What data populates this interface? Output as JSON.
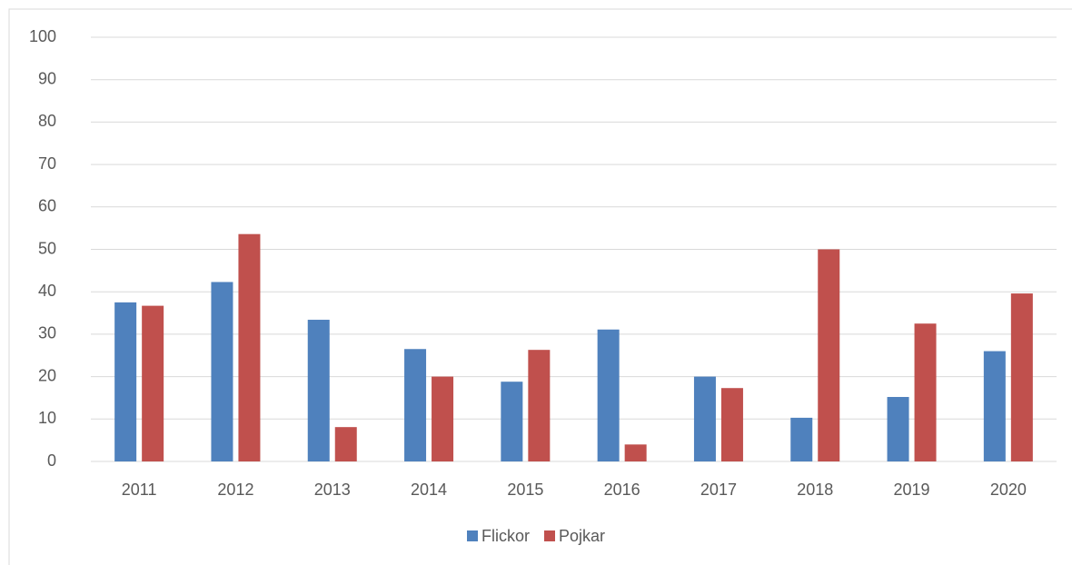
{
  "chart_data": {
    "type": "bar",
    "categories": [
      "2011",
      "2012",
      "2013",
      "2014",
      "2015",
      "2016",
      "2017",
      "2018",
      "2019",
      "2020"
    ],
    "series": [
      {
        "name": "Flickor",
        "color": "#4f81bd",
        "values": [
          37.5,
          42.3,
          33.4,
          26.5,
          18.8,
          31.1,
          20.0,
          10.3,
          15.2,
          26.0
        ]
      },
      {
        "name": "Pojkar",
        "color": "#c0504d",
        "values": [
          36.7,
          53.6,
          8.1,
          20.0,
          26.3,
          4.0,
          17.3,
          50.0,
          32.5,
          39.6
        ]
      }
    ],
    "ylim": [
      0,
      100
    ],
    "yticks": [
      0,
      10,
      20,
      30,
      40,
      50,
      60,
      70,
      80,
      90,
      100
    ],
    "grid": true,
    "legend": "bottom"
  }
}
